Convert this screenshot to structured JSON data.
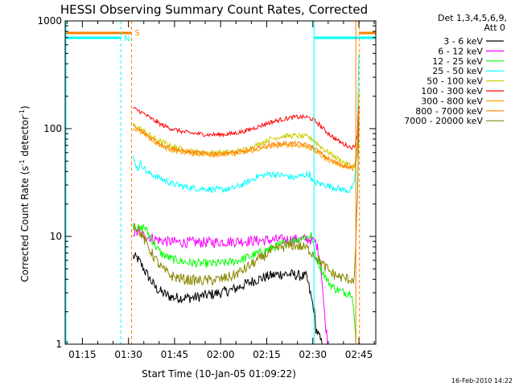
{
  "chart_data": {
    "type": "line",
    "title": "HESSI Observing Summary Count Rates, Corrected",
    "xlabel": "Start Time (10-Jan-05 01:09:22)",
    "ylabel": "Corrected Count Rate (s⁻¹ detector⁻¹)",
    "ylabel_main": "Corrected Count Rate (s",
    "ylabel_mid": " detector",
    "ylabel_end": ")",
    "ylabel_sup": "-1",
    "yscale": "log",
    "ylim": [
      1,
      1000
    ],
    "xlim_minutes": [
      69.4,
      170.5
    ],
    "x_ticks": [
      {
        "label": "01:15",
        "min": 75
      },
      {
        "label": "01:30",
        "min": 90
      },
      {
        "label": "01:45",
        "min": 105
      },
      {
        "label": "02:00",
        "min": 120
      },
      {
        "label": "02:15",
        "min": 135
      },
      {
        "label": "02:30",
        "min": 150
      },
      {
        "label": "02:45",
        "min": 165
      }
    ],
    "y_ticks": [
      {
        "label": "1",
        "value": 1
      },
      {
        "label": "10",
        "value": 10
      },
      {
        "label": "100",
        "value": 100
      },
      {
        "label": "1000",
        "value": 1000
      }
    ],
    "legend_header": [
      "Det 1,3,4,5,6,9,",
      "Att 0"
    ],
    "legend_placement": "right",
    "series": [
      {
        "name": "3 - 6 keV",
        "color": "#000000",
        "x": [
          91.5,
          93,
          95,
          97,
          99,
          101,
          103,
          105,
          108,
          111,
          114,
          117,
          120,
          124,
          128,
          132,
          136,
          140,
          144,
          148,
          150.5,
          151,
          153,
          155,
          157,
          159,
          161,
          163,
          164,
          165
        ],
        "y": [
          6.5,
          6.2,
          5.0,
          4.0,
          3.3,
          3.0,
          2.8,
          2.7,
          2.7,
          2.7,
          2.8,
          2.9,
          3.0,
          3.2,
          3.6,
          4.0,
          4.3,
          4.5,
          4.4,
          4.2,
          2.0,
          1.4,
          1.0,
          1.0,
          1.0,
          1.0,
          1.0,
          1.0,
          1.0,
          1.0
        ]
      },
      {
        "name": "6 - 12 keV",
        "color": "#ff00ff",
        "x": [
          91.5,
          93,
          95,
          97,
          99,
          101,
          104,
          108,
          112,
          116,
          120,
          125,
          130,
          135,
          140,
          145,
          149,
          151,
          152.5,
          154,
          155
        ],
        "y": [
          11,
          10.8,
          10.2,
          9.8,
          9.4,
          9.1,
          8.9,
          8.8,
          8.8,
          8.8,
          8.9,
          9.0,
          9.1,
          9.2,
          9.3,
          9.4,
          9.4,
          8.8,
          6.0,
          1.6,
          1.0
        ]
      },
      {
        "name": "12 - 25 keV",
        "color": "#00ff00",
        "x": [
          91.5,
          93,
          94,
          95,
          97,
          99,
          101,
          104,
          107,
          110,
          114,
          118,
          122,
          126,
          130,
          134,
          138,
          142,
          146,
          149.5,
          151,
          153,
          155,
          157,
          159,
          161,
          162,
          162.8,
          163.5,
          164
        ],
        "y": [
          13,
          12,
          11.5,
          12.5,
          10,
          8,
          6.8,
          6.2,
          5.9,
          5.7,
          5.6,
          5.6,
          5.7,
          6.0,
          6.6,
          7.3,
          8.1,
          8.9,
          9.6,
          10.2,
          6.5,
          4.8,
          3.8,
          3.3,
          3.1,
          3.0,
          3.0,
          3.0,
          1.8,
          1.0
        ]
      },
      {
        "name": "25 - 50 keV",
        "color": "#00ffff",
        "x": [
          91.5,
          93,
          94,
          95,
          96,
          97.5,
          99,
          101,
          104,
          108,
          112,
          116,
          120,
          124,
          128,
          132,
          136,
          140,
          144,
          147,
          149,
          150,
          152,
          154,
          156,
          158,
          160,
          162,
          163.5,
          164.5,
          165
        ],
        "y": [
          54,
          42,
          48,
          44,
          39,
          38,
          36,
          34,
          31,
          29,
          28,
          27.5,
          27,
          28,
          31,
          36,
          38,
          37,
          35,
          37,
          38,
          32,
          31,
          30,
          29,
          28,
          27,
          26.5,
          30,
          80,
          500
        ]
      },
      {
        "name": "50 - 100 keV",
        "color": "#cccc00",
        "x": [
          91.5,
          93,
          95,
          97,
          99,
          101,
          104,
          108,
          112,
          116,
          120,
          124,
          128,
          132,
          136,
          140,
          144,
          148,
          150,
          152,
          154,
          156,
          158,
          160,
          162,
          163.5,
          164.5,
          165
        ],
        "y": [
          108,
          103,
          96,
          87,
          80,
          75,
          69,
          64,
          61,
          60,
          60,
          61,
          64,
          71,
          80,
          85,
          86,
          84,
          80,
          70,
          63,
          58,
          53,
          49,
          46,
          45,
          70,
          220
        ]
      },
      {
        "name": "100 - 300 keV",
        "color": "#ff0000",
        "x": [
          91.5,
          93,
          95,
          97,
          99,
          101,
          104,
          108,
          112,
          116,
          120,
          124,
          128,
          132,
          136,
          140,
          144,
          148,
          150,
          152,
          154,
          156,
          158,
          160,
          162,
          163.5,
          164.5,
          165
        ],
        "y": [
          155,
          148,
          138,
          126,
          116,
          108,
          100,
          93,
          90,
          88,
          88,
          90,
          95,
          104,
          114,
          122,
          128,
          128,
          122,
          110,
          96,
          86,
          78,
          72,
          68,
          67,
          90,
          160
        ]
      },
      {
        "name": "300 - 800 keV",
        "color": "#ffa000",
        "x": [
          91.5,
          93,
          95,
          97,
          99,
          101,
          104,
          108,
          112,
          116,
          120,
          124,
          128,
          132,
          136,
          140,
          144,
          148,
          150,
          152,
          154,
          156,
          158,
          160,
          162,
          163.5,
          164.5,
          165
        ],
        "y": [
          100,
          96,
          88,
          80,
          73,
          68,
          63,
          60,
          58,
          57,
          57,
          58,
          60,
          64,
          68,
          70,
          70,
          68,
          64,
          58,
          53,
          50,
          47,
          45,
          43,
          42,
          60,
          140
        ]
      },
      {
        "name": "800 - 7000 keV",
        "color": "#ff8000",
        "x": [
          91.5,
          93,
          95,
          97,
          99,
          101,
          104,
          108,
          112,
          116,
          120,
          124,
          128,
          132,
          136,
          140,
          144,
          148,
          150,
          152,
          154,
          156,
          158,
          160,
          162,
          163.5,
          164.5,
          165
        ],
        "y": [
          105,
          99,
          92,
          84,
          77,
          71,
          66,
          62,
          60,
          59,
          59,
          60,
          62,
          66,
          71,
          73,
          73,
          71,
          67,
          61,
          55,
          51,
          48,
          46,
          44,
          43,
          62,
          150
        ]
      },
      {
        "name": "7000 - 20000 keV",
        "color": "#888800",
        "x": [
          91.5,
          93,
          95,
          97,
          99,
          101,
          104,
          108,
          112,
          116,
          120,
          124,
          128,
          132,
          136,
          140,
          144,
          148,
          150,
          152,
          154,
          156,
          158,
          160,
          162,
          163.5,
          164.5,
          165
        ],
        "y": [
          13,
          12,
          9.5,
          7.5,
          6.0,
          5.0,
          4.3,
          4.0,
          3.9,
          3.9,
          4.0,
          4.3,
          5.0,
          6.0,
          7.2,
          8.0,
          8.3,
          7.8,
          7.0,
          6.0,
          5.2,
          4.6,
          4.3,
          4.1,
          4.0,
          4.0,
          20,
          120
        ]
      }
    ],
    "annotations": [
      {
        "text": "N",
        "color": "#00ffff"
      },
      {
        "text": "S",
        "color": "#ff8000"
      }
    ],
    "footer_date": "16-Feb-2010 14:22"
  }
}
